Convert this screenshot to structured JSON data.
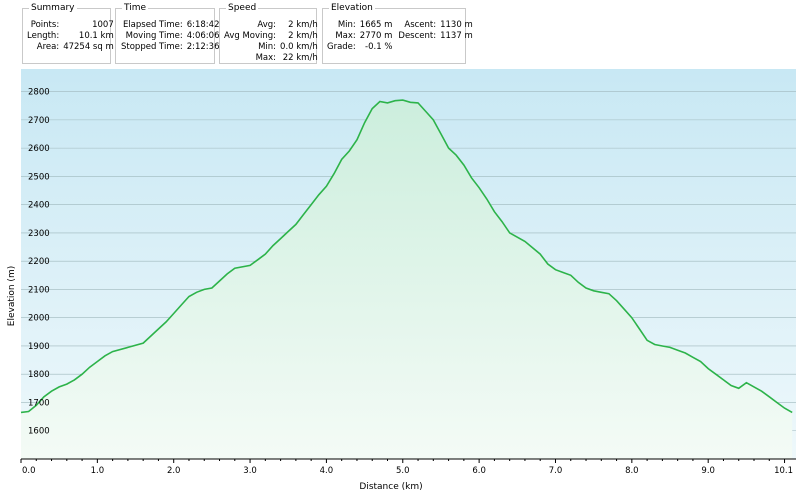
{
  "summary": {
    "title": "Summary",
    "rows": [
      {
        "label": "Points:",
        "value": "1007"
      },
      {
        "label": "Length:",
        "value": "10.1 km"
      },
      {
        "label": "Area:",
        "value": "47254 sq m"
      }
    ]
  },
  "time": {
    "title": "Time",
    "rows": [
      {
        "label": "Elapsed Time:",
        "value": "6:18:42"
      },
      {
        "label": "Moving Time:",
        "value": "4:06:06"
      },
      {
        "label": "Stopped Time:",
        "value": "2:12:36"
      }
    ]
  },
  "speed": {
    "title": "Speed",
    "rows": [
      {
        "label": "Avg:",
        "value": "2 km/h"
      },
      {
        "label": "Avg Moving:",
        "value": "2 km/h"
      },
      {
        "label": "Min:",
        "value": "0.0 km/h"
      },
      {
        "label": "Max:",
        "value": "22 km/h"
      }
    ]
  },
  "elevation": {
    "title": "Elevation",
    "rows": [
      {
        "label": "Min:",
        "value": "1665 m",
        "label2": "Ascent:",
        "value2": "1130 m"
      },
      {
        "label": "Max:",
        "value": "2770 m",
        "label2": "Descent:",
        "value2": "1137 m"
      },
      {
        "label": "Grade:",
        "value": "-0.1 %"
      }
    ]
  },
  "colors": {
    "line": "#2db34a",
    "fill_top": "#cceedd",
    "fill_bottom": "#f4fbf6",
    "sky_top": "#c8e8f4",
    "sky_bottom": "#eef8fb",
    "grid": "#9fb8bd"
  },
  "chart_data": {
    "type": "area",
    "xlabel": "Distance  (km)",
    "ylabel": "Elevation (m)",
    "xlim": [
      0,
      10.15
    ],
    "ylim": [
      1500,
      2880
    ],
    "xticks": [
      0,
      1,
      2,
      3,
      4,
      5,
      6,
      7,
      8,
      9,
      10
    ],
    "xtick_labels": [
      "0.0",
      "1.0",
      "2.0",
      "3.0",
      "4.0",
      "5.0",
      "6.0",
      "7.0",
      "8.0",
      "9.0",
      "10.1"
    ],
    "yticks": [
      1600,
      1700,
      1800,
      1900,
      2000,
      2100,
      2200,
      2300,
      2400,
      2500,
      2600,
      2700,
      2800
    ],
    "grid": true,
    "x": [
      0,
      0.1,
      0.2,
      0.3,
      0.4,
      0.5,
      0.6,
      0.7,
      0.8,
      0.9,
      1.0,
      1.1,
      1.2,
      1.4,
      1.6,
      1.8,
      1.9,
      2.0,
      2.1,
      2.2,
      2.3,
      2.4,
      2.5,
      2.6,
      2.7,
      2.8,
      3.0,
      3.1,
      3.2,
      3.3,
      3.4,
      3.5,
      3.6,
      3.7,
      3.8,
      3.9,
      4.0,
      4.1,
      4.2,
      4.3,
      4.4,
      4.5,
      4.6,
      4.7,
      4.8,
      4.9,
      5.0,
      5.1,
      5.2,
      5.3,
      5.4,
      5.5,
      5.6,
      5.7,
      5.8,
      5.9,
      6.0,
      6.1,
      6.2,
      6.3,
      6.4,
      6.6,
      6.8,
      6.9,
      7.0,
      7.1,
      7.2,
      7.3,
      7.4,
      7.5,
      7.6,
      7.7,
      7.8,
      7.9,
      8.0,
      8.1,
      8.2,
      8.3,
      8.4,
      8.5,
      8.6,
      8.7,
      8.8,
      8.9,
      9.0,
      9.1,
      9.2,
      9.3,
      9.4,
      9.5,
      9.6,
      9.7,
      9.8,
      9.9,
      10.0,
      10.1
    ],
    "y": [
      1665,
      1668,
      1690,
      1720,
      1740,
      1755,
      1765,
      1780,
      1800,
      1825,
      1845,
      1865,
      1880,
      1895,
      1910,
      1960,
      1985,
      2015,
      2045,
      2075,
      2090,
      2100,
      2105,
      2130,
      2155,
      2175,
      2185,
      2205,
      2225,
      2255,
      2280,
      2305,
      2330,
      2365,
      2400,
      2435,
      2465,
      2510,
      2560,
      2590,
      2630,
      2690,
      2740,
      2765,
      2760,
      2768,
      2770,
      2762,
      2760,
      2730,
      2700,
      2650,
      2600,
      2575,
      2540,
      2495,
      2460,
      2420,
      2375,
      2340,
      2300,
      2270,
      2225,
      2190,
      2170,
      2160,
      2150,
      2125,
      2105,
      2095,
      2090,
      2085,
      2060,
      2030,
      2000,
      1960,
      1920,
      1905,
      1900,
      1895,
      1885,
      1875,
      1860,
      1845,
      1820,
      1800,
      1780,
      1760,
      1750,
      1770,
      1755,
      1740,
      1720,
      1700,
      1680,
      1665
    ]
  }
}
